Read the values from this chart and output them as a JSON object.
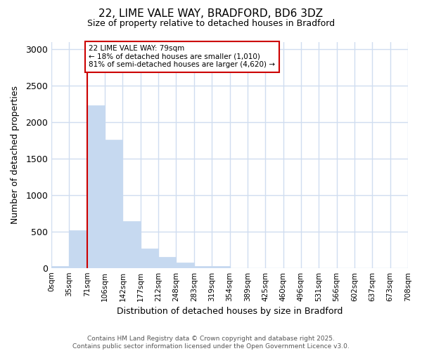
{
  "title1": "22, LIME VALE WAY, BRADFORD, BD6 3DZ",
  "title2": "Size of property relative to detached houses in Bradford",
  "xlabel": "Distribution of detached houses by size in Bradford",
  "ylabel": "Number of detached properties",
  "annotation_line1": "22 LIME VALE WAY: 79sqm",
  "annotation_line2": "← 18% of detached houses are smaller (1,010)",
  "annotation_line3": "81% of semi-detached houses are larger (4,620) →",
  "footer1": "Contains HM Land Registry data © Crown copyright and database right 2025.",
  "footer2": "Contains public sector information licensed under the Open Government Licence v3.0.",
  "bar_values": [
    30,
    520,
    2230,
    1760,
    640,
    270,
    150,
    75,
    30,
    25,
    0,
    0,
    0,
    0,
    0,
    0,
    0,
    0,
    0,
    0
  ],
  "bin_labels": [
    "0sqm",
    "35sqm",
    "71sqm",
    "106sqm",
    "142sqm",
    "177sqm",
    "212sqm",
    "248sqm",
    "283sqm",
    "319sqm",
    "354sqm",
    "389sqm",
    "425sqm",
    "460sqm",
    "496sqm",
    "531sqm",
    "566sqm",
    "602sqm",
    "637sqm",
    "673sqm",
    "708sqm"
  ],
  "bar_color": "#c6d9f0",
  "bar_edge_color": "#c6d9f0",
  "vline_x": 2.0,
  "vline_color": "#cc0000",
  "annotation_box_color": "#cc0000",
  "background_color": "#ffffff",
  "grid_color": "#d0ddf0",
  "ylim": [
    0,
    3100
  ],
  "yticks": [
    0,
    500,
    1000,
    1500,
    2000,
    2500,
    3000
  ]
}
